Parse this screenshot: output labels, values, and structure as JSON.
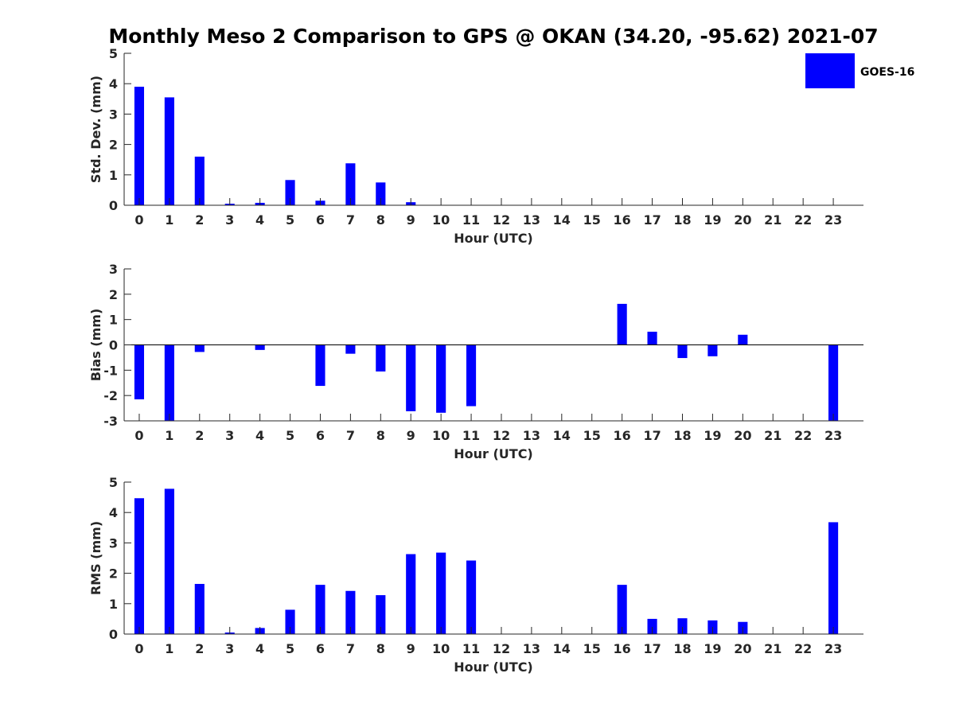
{
  "colors": {
    "bar": "#0000ff",
    "axis": "#262626",
    "background": "#ffffff"
  },
  "chart_data": {
    "title": "Monthly Meso 2 Comparison to GPS @ OKAN (34.20, -95.62) 2021-07",
    "legend": {
      "label": "GOES-16",
      "placement": "top-right"
    },
    "panels": [
      {
        "type": "bar",
        "xlabel": "Hour (UTC)",
        "ylabel": "Std. Dev. (mm)",
        "ylim": [
          0,
          5
        ],
        "yticks": [
          0,
          1,
          2,
          3,
          4,
          5
        ],
        "categories": [
          "0",
          "1",
          "2",
          "3",
          "4",
          "5",
          "6",
          "7",
          "8",
          "9",
          "10",
          "11",
          "12",
          "13",
          "14",
          "15",
          "16",
          "17",
          "18",
          "19",
          "20",
          "21",
          "22",
          "23"
        ],
        "series": [
          {
            "name": "GOES-16",
            "values": [
              3.9,
              3.55,
              1.6,
              0.05,
              0.08,
              0.83,
              0.15,
              1.38,
              0.75,
              0.1,
              0,
              0,
              0,
              0,
              0,
              0,
              0,
              0,
              0,
              0,
              0,
              0,
              0,
              0
            ]
          }
        ]
      },
      {
        "type": "bar",
        "xlabel": "Hour (UTC)",
        "ylabel": "Bias (mm)",
        "ylim": [
          -3,
          3
        ],
        "yticks": [
          -3,
          -2,
          -1,
          0,
          1,
          2,
          3
        ],
        "categories": [
          "0",
          "1",
          "2",
          "3",
          "4",
          "5",
          "6",
          "7",
          "8",
          "9",
          "10",
          "11",
          "12",
          "13",
          "14",
          "15",
          "16",
          "17",
          "18",
          "19",
          "20",
          "21",
          "22",
          "23"
        ],
        "series": [
          {
            "name": "GOES-16",
            "values": [
              -2.15,
              -3.0,
              -0.28,
              0,
              -0.2,
              0,
              -1.62,
              -0.35,
              -1.05,
              -2.62,
              -2.68,
              -2.42,
              0,
              0,
              0,
              0,
              1.62,
              0.52,
              -0.52,
              -0.45,
              0.4,
              0,
              0,
              -3.0
            ]
          }
        ]
      },
      {
        "type": "bar",
        "xlabel": "Hour (UTC)",
        "ylabel": "RMS (mm)",
        "ylim": [
          0,
          5
        ],
        "yticks": [
          0,
          1,
          2,
          3,
          4,
          5
        ],
        "categories": [
          "0",
          "1",
          "2",
          "3",
          "4",
          "5",
          "6",
          "7",
          "8",
          "9",
          "10",
          "11",
          "12",
          "13",
          "14",
          "15",
          "16",
          "17",
          "18",
          "19",
          "20",
          "21",
          "22",
          "23"
        ],
        "series": [
          {
            "name": "GOES-16",
            "values": [
              4.47,
              4.78,
              1.65,
              0.05,
              0.2,
              0.8,
              1.62,
              1.42,
              1.28,
              2.63,
              2.68,
              2.42,
              0,
              0,
              0,
              0,
              1.62,
              0.5,
              0.52,
              0.45,
              0.4,
              0,
              0,
              3.68
            ]
          }
        ]
      }
    ]
  }
}
